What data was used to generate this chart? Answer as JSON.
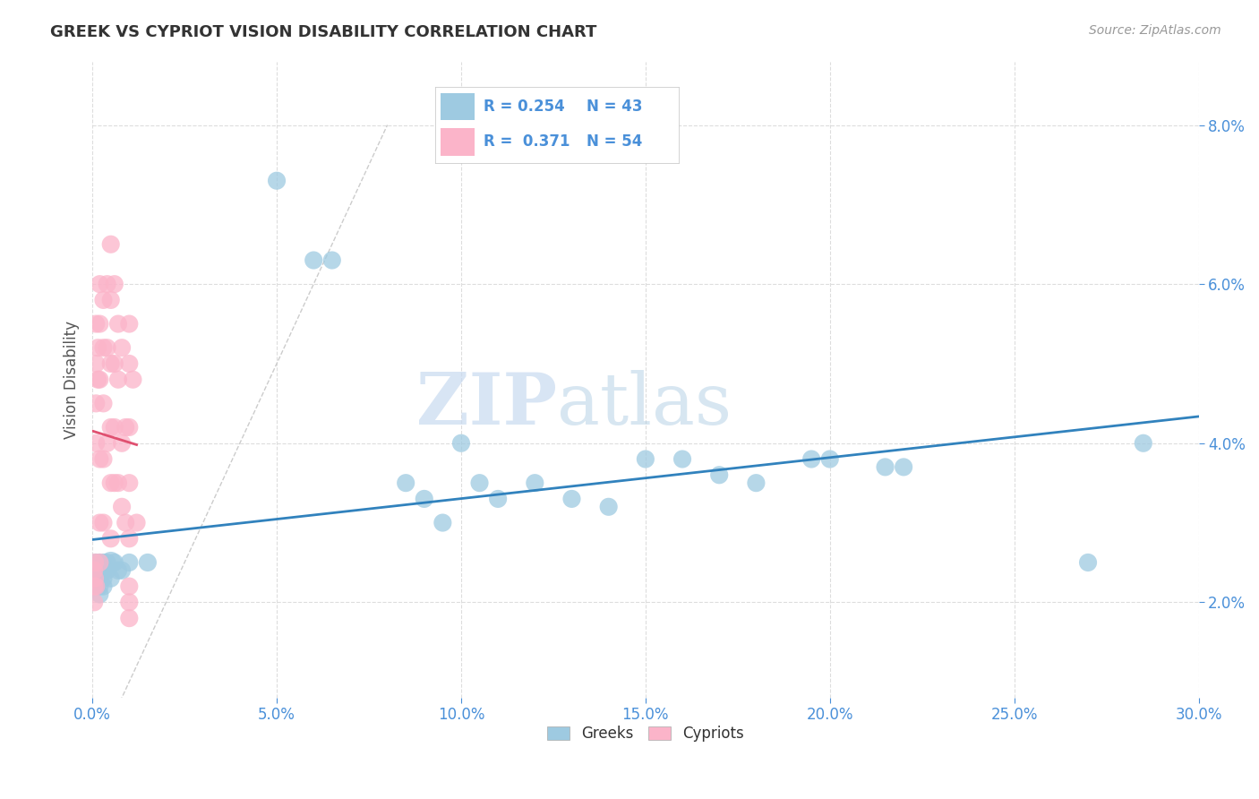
{
  "title": "GREEK VS CYPRIOT VISION DISABILITY CORRELATION CHART",
  "source": "Source: ZipAtlas.com",
  "ylabel": "Vision Disability",
  "xlim": [
    0.0,
    0.3
  ],
  "ylim": [
    0.008,
    0.088
  ],
  "x_ticks": [
    0.0,
    0.05,
    0.1,
    0.15,
    0.2,
    0.25,
    0.3
  ],
  "x_tick_labels": [
    "0.0%",
    "5.0%",
    "10.0%",
    "15.0%",
    "20.0%",
    "25.0%",
    "30.0%"
  ],
  "y_ticks": [
    0.02,
    0.04,
    0.06,
    0.08
  ],
  "y_tick_labels": [
    "2.0%",
    "4.0%",
    "6.0%",
    "8.0%"
  ],
  "greek_color": "#9ecae1",
  "cypriot_color": "#fbb4c9",
  "greek_line_color": "#3182bd",
  "cypriot_line_color": "#e05070",
  "diagonal_color": "#cccccc",
  "r_greek": 0.254,
  "n_greek": 43,
  "r_cypriot": 0.371,
  "n_cypriot": 54,
  "watermark_zip": "ZIP",
  "watermark_atlas": "atlas",
  "background_color": "#ffffff",
  "grid_color": "#dddddd",
  "tick_color": "#4a90d9",
  "greek_x": [
    0.001,
    0.001,
    0.001,
    0.002,
    0.002,
    0.002,
    0.002,
    0.002,
    0.003,
    0.003,
    0.003,
    0.003,
    0.004,
    0.004,
    0.005,
    0.005,
    0.006,
    0.007,
    0.008,
    0.01,
    0.015,
    0.05,
    0.06,
    0.065,
    0.085,
    0.09,
    0.095,
    0.1,
    0.105,
    0.11,
    0.12,
    0.13,
    0.14,
    0.15,
    0.16,
    0.17,
    0.18,
    0.195,
    0.2,
    0.215,
    0.22,
    0.27,
    0.285
  ],
  "greek_y": [
    0.025,
    0.024,
    0.023,
    0.025,
    0.024,
    0.023,
    0.022,
    0.021,
    0.025,
    0.024,
    0.023,
    0.022,
    0.025,
    0.024,
    0.025,
    0.023,
    0.025,
    0.024,
    0.024,
    0.025,
    0.025,
    0.073,
    0.063,
    0.063,
    0.035,
    0.033,
    0.03,
    0.04,
    0.035,
    0.033,
    0.035,
    0.033,
    0.032,
    0.038,
    0.038,
    0.036,
    0.035,
    0.038,
    0.038,
    0.037,
    0.037,
    0.025,
    0.04
  ],
  "greek_sizes": [
    30,
    30,
    30,
    30,
    30,
    30,
    30,
    30,
    30,
    30,
    30,
    30,
    30,
    30,
    30,
    30,
    30,
    30,
    30,
    30,
    30,
    30,
    30,
    30,
    30,
    30,
    30,
    30,
    30,
    30,
    30,
    30,
    30,
    30,
    30,
    30,
    30,
    30,
    30,
    30,
    30,
    30,
    30
  ],
  "greek_large_idx": 14,
  "greek_large_size": 300,
  "cypriot_x": [
    0.0005,
    0.0005,
    0.0005,
    0.0007,
    0.0007,
    0.001,
    0.001,
    0.001,
    0.001,
    0.001,
    0.0015,
    0.0015,
    0.002,
    0.002,
    0.002,
    0.002,
    0.002,
    0.002,
    0.003,
    0.003,
    0.003,
    0.003,
    0.003,
    0.004,
    0.004,
    0.004,
    0.005,
    0.005,
    0.005,
    0.005,
    0.005,
    0.005,
    0.006,
    0.006,
    0.006,
    0.006,
    0.007,
    0.007,
    0.007,
    0.008,
    0.008,
    0.008,
    0.009,
    0.009,
    0.01,
    0.01,
    0.01,
    0.01,
    0.01,
    0.01,
    0.01,
    0.01,
    0.011,
    0.012
  ],
  "cypriot_y": [
    0.024,
    0.022,
    0.02,
    0.025,
    0.023,
    0.055,
    0.05,
    0.045,
    0.04,
    0.022,
    0.052,
    0.048,
    0.06,
    0.055,
    0.048,
    0.038,
    0.03,
    0.025,
    0.058,
    0.052,
    0.045,
    0.038,
    0.03,
    0.06,
    0.052,
    0.04,
    0.065,
    0.058,
    0.05,
    0.042,
    0.035,
    0.028,
    0.06,
    0.05,
    0.042,
    0.035,
    0.055,
    0.048,
    0.035,
    0.052,
    0.04,
    0.032,
    0.042,
    0.03,
    0.055,
    0.05,
    0.042,
    0.035,
    0.028,
    0.022,
    0.02,
    0.018,
    0.048,
    0.03
  ],
  "cypriot_sizes": [
    30,
    30,
    30,
    30,
    30,
    30,
    30,
    30,
    30,
    30,
    30,
    30,
    30,
    30,
    30,
    30,
    30,
    30,
    30,
    30,
    30,
    30,
    30,
    30,
    30,
    30,
    30,
    30,
    30,
    30,
    30,
    30,
    30,
    30,
    30,
    30,
    30,
    30,
    30,
    30,
    30,
    30,
    30,
    30,
    30,
    30,
    30,
    30,
    30,
    30,
    30,
    30,
    30,
    30
  ],
  "legend_greek_label": "Greeks",
  "legend_cypriot_label": "Cypriots"
}
